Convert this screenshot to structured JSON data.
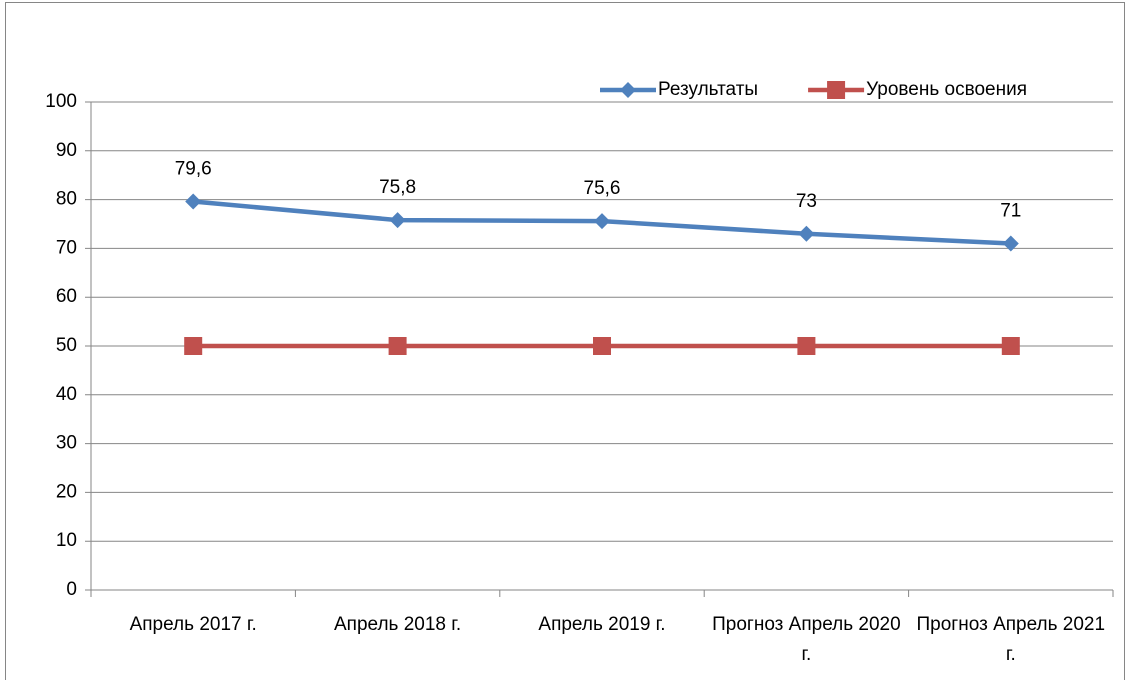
{
  "chart_data": {
    "type": "line",
    "categories": [
      "Апрель 2017 г.",
      "Апрель 2018 г.",
      "Апрель 2019 г.",
      "Прогноз Апрель 2020 г.",
      "Прогноз Апрель 2021 г."
    ],
    "series": [
      {
        "name": "Результаты",
        "color": "#4f81bd",
        "marker": "diamond",
        "values": [
          79.6,
          75.8,
          75.6,
          73,
          71
        ],
        "value_labels": [
          "79,6",
          "75,8",
          "75,6",
          "73",
          "71"
        ]
      },
      {
        "name": "Уровень освоения",
        "color": "#c0504d",
        "marker": "square",
        "values": [
          50,
          50,
          50,
          50,
          50
        ]
      }
    ],
    "ylim": [
      0,
      100
    ],
    "yticks": [
      0,
      10,
      20,
      30,
      40,
      50,
      60,
      70,
      80,
      90,
      100
    ],
    "grid": true,
    "legend": "top-right"
  }
}
